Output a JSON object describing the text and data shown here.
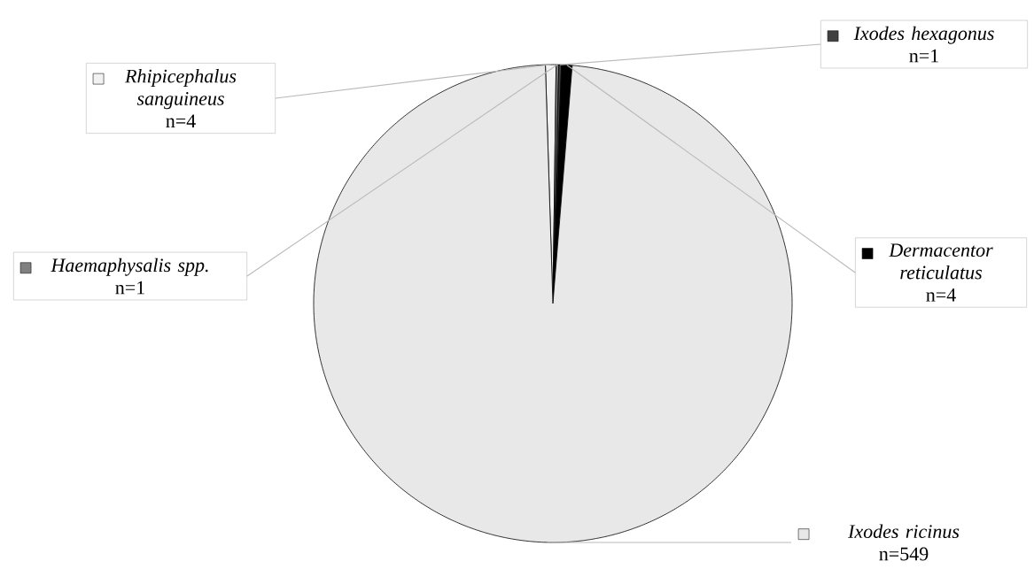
{
  "chart_data": {
    "type": "pie",
    "categories": [
      "Rhipicephalus sanguineus",
      "Haemaphysalis spp.",
      "Ixodes hexagonus",
      "Dermacentor reticulatus",
      "Ixodes ricinus"
    ],
    "values": [
      4,
      1,
      1,
      4,
      549
    ],
    "value_labels": [
      "n=4",
      "n=1",
      "n=1",
      "n=4",
      "n=549"
    ],
    "legend": "top left",
    "colors": [
      "#f2f2f2",
      "#808080",
      "#404040",
      "#000000",
      "#e8e8e8"
    ]
  }
}
